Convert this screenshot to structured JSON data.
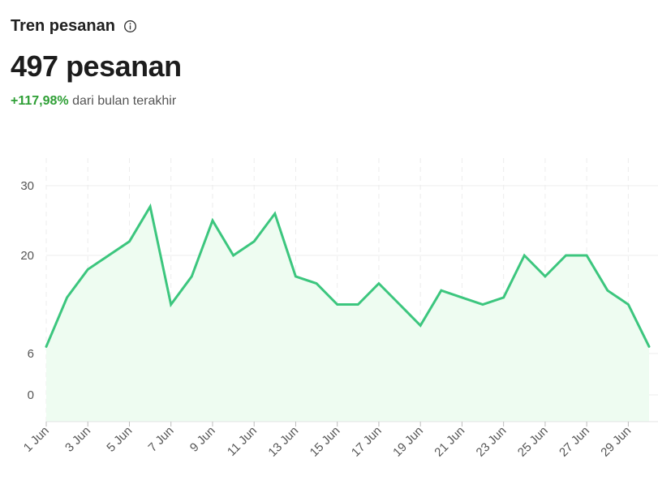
{
  "header": {
    "title": "Tren pesanan",
    "total": "497 pesanan",
    "change_value": "+117,98%",
    "change_text": "dari bulan terakhir",
    "info_icon": "info-icon"
  },
  "colors": {
    "line": "#3cc67e",
    "area": "#eefcf1",
    "positive": "#2e9f35",
    "grid": "#ececec"
  },
  "chart_data": {
    "type": "area",
    "x": [
      "1 Jun",
      "2 Jun",
      "3 Jun",
      "4 Jun",
      "5 Jun",
      "6 Jun",
      "7 Jun",
      "8 Jun",
      "9 Jun",
      "10 Jun",
      "11 Jun",
      "12 Jun",
      "13 Jun",
      "14 Jun",
      "15 Jun",
      "16 Jun",
      "17 Jun",
      "18 Jun",
      "19 Jun",
      "20 Jun",
      "21 Jun",
      "22 Jun",
      "23 Jun",
      "24 Jun",
      "25 Jun",
      "26 Jun",
      "27 Jun",
      "28 Jun",
      "29 Jun",
      "30 Jun"
    ],
    "values": [
      7,
      14,
      18,
      20,
      22,
      27,
      13,
      17,
      25,
      20,
      22,
      26,
      17,
      16,
      13,
      13,
      16,
      13,
      10,
      15,
      14,
      13,
      14,
      20,
      17,
      20,
      20,
      15,
      13,
      7
    ],
    "x_tick_labels": [
      "1 Jun",
      "3 Jun",
      "5 Jun",
      "7 Jun",
      "9 Jun",
      "11 Jun",
      "13 Jun",
      "15 Jun",
      "17 Jun",
      "19 Jun",
      "21 Jun",
      "23 Jun",
      "25 Jun",
      "27 Jun",
      "29 Jun"
    ],
    "y_tick_labels": [
      "0",
      "6",
      "20",
      "30"
    ],
    "y_ticks": [
      0,
      6,
      20,
      30
    ],
    "ylim": [
      0,
      30
    ],
    "grid": true,
    "legend": "none"
  }
}
